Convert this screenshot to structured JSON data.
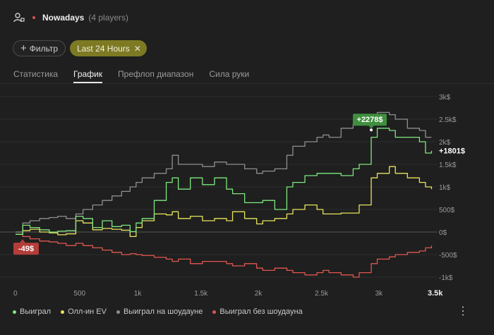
{
  "header": {
    "title": "Nowadays",
    "players": "(4 players)"
  },
  "filters": {
    "filter_label": "Фильтр",
    "time_label": "Last 24 Hours"
  },
  "tabs": [
    "Статистика",
    "График",
    "Префлоп диапазон",
    "Сила руки"
  ],
  "active_tab": "График",
  "colors": {
    "won": "#7ee87e",
    "allin": "#e8e45e",
    "showdown": "#8f8f8f",
    "nonshowdown": "#e0574f",
    "grid": "#3a3a3a",
    "accent": "#7d7a23"
  },
  "chart_data": {
    "type": "line",
    "xlim": [
      0,
      3500
    ],
    "ylim": [
      -1100,
      3000
    ],
    "x_ticks": [
      "0",
      "500",
      "1k",
      "1.5k",
      "2k",
      "2.5k",
      "3k",
      "3.5k"
    ],
    "y_ticks": [
      "3k$",
      "2.5k$",
      "2k$",
      "1.5k$",
      "1k$",
      "500$",
      "0$",
      "-500$",
      "-1k$"
    ],
    "series": [
      {
        "name": "Выиграл",
        "key": "won",
        "x": [
          0,
          60,
          120,
          200,
          280,
          350,
          420,
          500,
          560,
          640,
          720,
          800,
          880,
          950,
          1000,
          1050,
          1150,
          1250,
          1300,
          1350,
          1450,
          1550,
          1650,
          1750,
          1800,
          1900,
          2000,
          2050,
          2150,
          2250,
          2300,
          2400,
          2500,
          2550,
          2600,
          2700,
          2800,
          2850,
          2950,
          3000,
          3100,
          3150,
          3250,
          3350,
          3400,
          3450
        ],
        "y": [
          -50,
          150,
          100,
          50,
          0,
          20,
          30,
          350,
          300,
          100,
          250,
          120,
          150,
          10,
          200,
          300,
          700,
          1100,
          1200,
          950,
          1200,
          1050,
          1200,
          950,
          850,
          650,
          650,
          700,
          500,
          1000,
          1100,
          1250,
          1300,
          1300,
          1300,
          1250,
          1400,
          1500,
          2100,
          2300,
          2250,
          2100,
          2100,
          2000,
          1750,
          1801
        ]
      },
      {
        "name": "Олл-ин EV",
        "key": "allin",
        "x": [
          0,
          60,
          120,
          200,
          280,
          350,
          420,
          500,
          560,
          640,
          720,
          800,
          880,
          950,
          1000,
          1050,
          1150,
          1250,
          1300,
          1350,
          1450,
          1550,
          1650,
          1750,
          1800,
          1900,
          2000,
          2050,
          2150,
          2250,
          2300,
          2400,
          2500,
          2550,
          2600,
          2700,
          2800,
          2850,
          2950,
          3000,
          3100,
          3150,
          3250,
          3350,
          3400,
          3450
        ],
        "y": [
          -50,
          30,
          60,
          0,
          -20,
          -60,
          -40,
          250,
          200,
          50,
          80,
          60,
          40,
          -100,
          100,
          250,
          400,
          380,
          450,
          300,
          350,
          250,
          300,
          250,
          450,
          300,
          180,
          250,
          300,
          400,
          500,
          600,
          500,
          400,
          400,
          420,
          420,
          600,
          1200,
          1300,
          1450,
          1300,
          1200,
          1100,
          1000,
          950
        ]
      },
      {
        "name": "Выиграл на шоудауне",
        "key": "showdown",
        "x": [
          0,
          60,
          120,
          200,
          280,
          350,
          420,
          500,
          560,
          640,
          720,
          800,
          880,
          950,
          1000,
          1050,
          1150,
          1250,
          1300,
          1350,
          1450,
          1550,
          1650,
          1750,
          1800,
          1900,
          2000,
          2050,
          2150,
          2250,
          2300,
          2400,
          2500,
          2550,
          2600,
          2700,
          2800,
          2850,
          2950,
          3000,
          3100,
          3150,
          3250,
          3350,
          3400,
          3450
        ],
        "y": [
          0,
          200,
          250,
          300,
          320,
          350,
          300,
          400,
          500,
          600,
          700,
          800,
          900,
          1000,
          1100,
          1200,
          1300,
          1400,
          1700,
          1500,
          1500,
          1450,
          1550,
          1500,
          1500,
          1400,
          1300,
          1350,
          1400,
          1700,
          1900,
          2000,
          2100,
          2150,
          2100,
          2300,
          2400,
          2450,
          2600,
          2650,
          2600,
          2500,
          2300,
          2250,
          2100,
          2100
        ]
      },
      {
        "name": "Выиграл без шоудауна",
        "key": "nonshowdown",
        "x": [
          0,
          60,
          120,
          200,
          280,
          350,
          420,
          500,
          560,
          640,
          720,
          800,
          880,
          950,
          1000,
          1050,
          1150,
          1250,
          1300,
          1350,
          1450,
          1550,
          1650,
          1750,
          1800,
          1900,
          2000,
          2050,
          2150,
          2250,
          2300,
          2400,
          2500,
          2550,
          2600,
          2700,
          2800,
          2850,
          2950,
          3000,
          3100,
          3150,
          3250,
          3350,
          3400,
          3450
        ],
        "y": [
          -50,
          -100,
          -150,
          -200,
          -220,
          -250,
          -300,
          -250,
          -300,
          -350,
          -400,
          -450,
          -500,
          -480,
          -500,
          -520,
          -560,
          -600,
          -650,
          -600,
          -700,
          -650,
          -650,
          -700,
          -750,
          -700,
          -800,
          -850,
          -800,
          -850,
          -900,
          -950,
          -900,
          -850,
          -900,
          -950,
          -1000,
          -900,
          -700,
          -600,
          -550,
          -500,
          -450,
          -420,
          -350,
          -300
        ]
      }
    ],
    "annotations": {
      "max_label": "+2278$",
      "min_label": "-49$",
      "end_label": "+1801$",
      "max_value": 2278,
      "max_x": 2950,
      "min_value": -49,
      "min_x": 0,
      "end_value": 1801,
      "end_x": 3450
    }
  }
}
